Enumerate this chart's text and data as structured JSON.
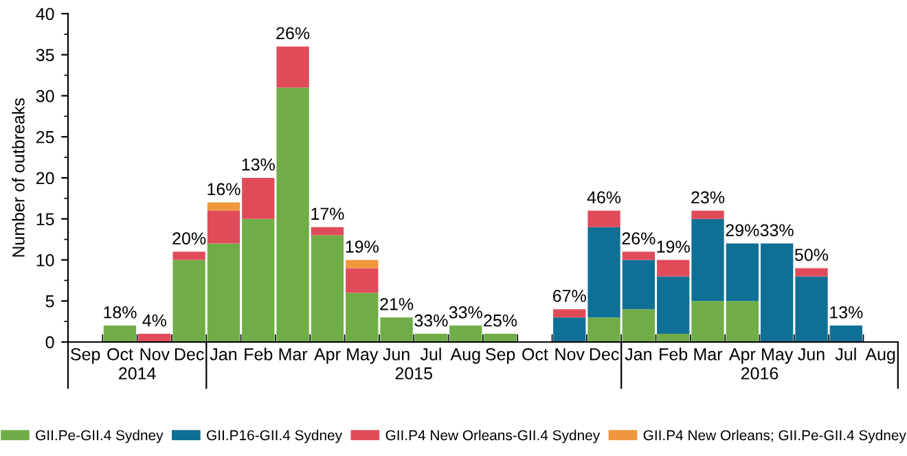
{
  "chart_data": {
    "type": "bar",
    "stacked": true,
    "ylabel": "Number of outbreaks",
    "categories": [
      "Sep",
      "Oct",
      "Nov",
      "Dec",
      "Jan",
      "Feb",
      "Mar",
      "Apr",
      "May",
      "Jun",
      "Jul",
      "Aug",
      "Sep",
      "Oct",
      "Nov",
      "Dec",
      "Jan",
      "Feb",
      "Mar",
      "Apr",
      "May",
      "Jun",
      "Jul",
      "Aug"
    ],
    "series": [
      {
        "name": "GII.Pe-GII.4 Sydney",
        "color": "#70ad47",
        "values": [
          null,
          2,
          null,
          10,
          12,
          15,
          31,
          13,
          6,
          3,
          1,
          2,
          1,
          null,
          null,
          3,
          4,
          1,
          5,
          5,
          null,
          null,
          null,
          null
        ]
      },
      {
        "name": "GII.P16-GII.4 Sydney",
        "color": "#0f7096",
        "values": [
          null,
          null,
          null,
          null,
          null,
          null,
          null,
          null,
          null,
          null,
          null,
          null,
          null,
          null,
          3,
          11,
          6,
          7,
          10,
          7,
          12,
          8,
          2,
          null
        ]
      },
      {
        "name": "GII.P4 New Orleans-GII.4 Sydney",
        "color": "#e04b5a",
        "values": [
          null,
          null,
          1,
          1,
          4,
          5,
          5,
          1,
          3,
          null,
          null,
          null,
          null,
          null,
          1,
          2,
          1,
          2,
          1,
          null,
          null,
          1,
          null,
          null
        ]
      },
      {
        "name": "GII.P4 New Orleans; GII.Pe-GII.4 Sydney",
        "color": "#f0963c",
        "values": [
          null,
          null,
          null,
          null,
          1,
          null,
          null,
          null,
          1,
          null,
          null,
          null,
          null,
          null,
          null,
          null,
          null,
          null,
          null,
          null,
          null,
          null,
          null,
          null
        ]
      }
    ],
    "ylim": [
      0,
      40
    ],
    "yticks": [
      0,
      5,
      10,
      15,
      20,
      25,
      30,
      35,
      40
    ],
    "grid": false,
    "legend": "bottom",
    "annotations": [
      "2014",
      "2015",
      "2016",
      {
        "text": "18%",
        "x": "Oct",
        "y": 2
      },
      {
        "text": "4%",
        "x": "Nov",
        "y": 1
      },
      {
        "text": "20%",
        "x": "Dec",
        "y": 11
      },
      {
        "text": "16%",
        "x": "Jan",
        "y": 17
      },
      {
        "text": "13%",
        "x": "Feb",
        "y": 20
      },
      {
        "text": "26%",
        "x": "Mar",
        "y": 36
      },
      {
        "text": "17%",
        "x": "Apr",
        "y": 14
      },
      {
        "text": "19%",
        "x": "May",
        "y": 10
      },
      {
        "text": "21%",
        "x": "Jun",
        "y": 3
      },
      {
        "text": "33%",
        "x": "Jul",
        "y": 1
      },
      {
        "text": "33%",
        "x": "Aug",
        "y": 2
      },
      {
        "text": "25%",
        "y": 1
      },
      {
        "text": "67%",
        "y": 4
      },
      {
        "text": "46%",
        "y": 16
      },
      {
        "text": "26%",
        "y": 11
      },
      {
        "text": "19%",
        "y": 10
      },
      {
        "text": "23%",
        "y": 16
      },
      {
        "text": "29%",
        "y": 12
      },
      {
        "text": "33%",
        "y": 12
      },
      {
        "text": "50%",
        "y": 9
      },
      {
        "text": "13%",
        "y": 2
      }
    ]
  }
}
